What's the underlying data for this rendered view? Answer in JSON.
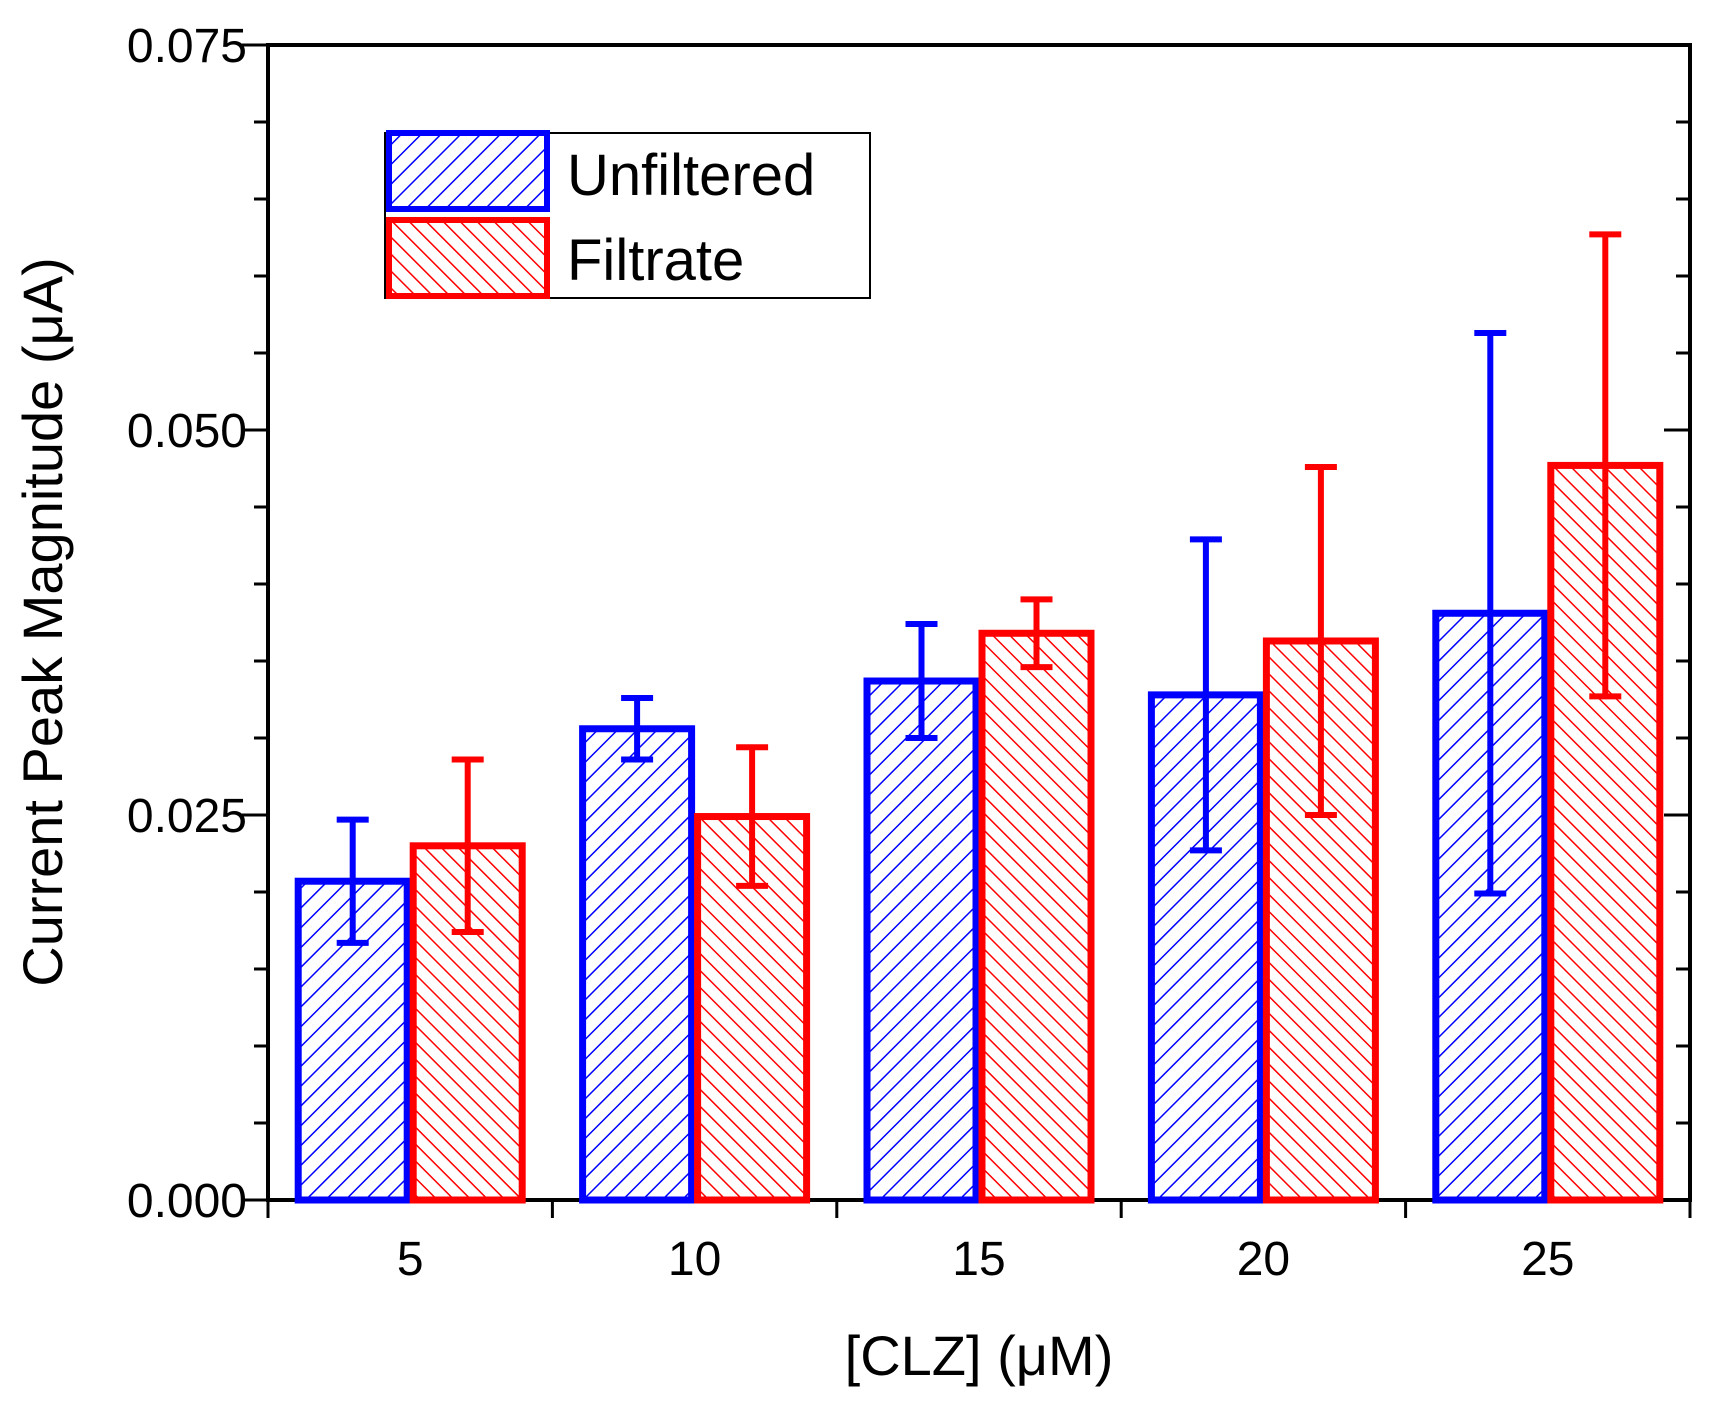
{
  "chart_data": {
    "type": "bar",
    "title": "",
    "xlabel": "[CLZ] (μM)",
    "ylabel": "Current Peak Magnitude (μA)",
    "categories": [
      "5",
      "10",
      "15",
      "20",
      "25"
    ],
    "ylim": [
      0,
      0.075
    ],
    "y_ticks": [
      "0.000",
      "0.025",
      "0.050",
      "0.075"
    ],
    "grid": false,
    "legend_position": "top-left",
    "series": [
      {
        "name": "Unfiltered",
        "color": "#0000ff",
        "hatch": "forward-diagonal",
        "values": [
          0.0207,
          0.0306,
          0.0337,
          0.0328,
          0.0381
        ],
        "errors": [
          0.004,
          0.002,
          0.0037,
          0.0101,
          0.0182
        ]
      },
      {
        "name": "Filtrate",
        "color": "#ff0000",
        "hatch": "backward-diagonal",
        "values": [
          0.023,
          0.0249,
          0.0368,
          0.0363,
          0.0477
        ],
        "errors": [
          0.0056,
          0.0045,
          0.0022,
          0.0113,
          0.015
        ]
      }
    ]
  }
}
